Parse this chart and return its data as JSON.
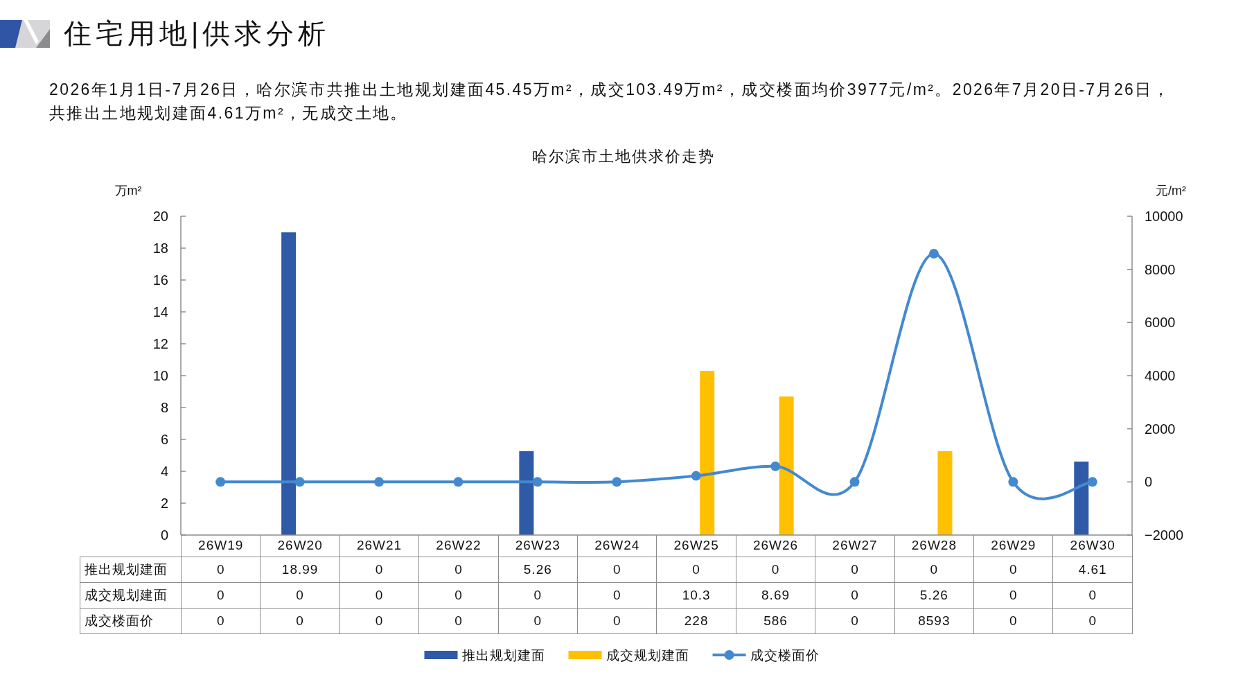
{
  "chart_data": {
    "type": "bar",
    "title": "住宅用地|供求分析",
    "subtitle": "2026年1月1日-7月26日，哈尔滨市共推出土地规划建面45.45万m²，成交103.49万m²，成交楼面均价3977元/m²。2026年7月20日-7月26日，共推出土地规划建面4.61万m²，无成交土地。",
    "annotations": [
      "哈尔滨市土地供求价走势"
    ],
    "ylabel": "万m²",
    "y2label": "元/m²",
    "categories": [
      "26W19",
      "26W20",
      "26W21",
      "26W22",
      "26W23",
      "26W24",
      "26W25",
      "26W26",
      "26W27",
      "26W28",
      "26W29",
      "26W30"
    ],
    "series": [
      {
        "name": "推出规划建面",
        "color": "#2e5aa8",
        "values": [
          0,
          18.99,
          0,
          0,
          5.26,
          0,
          0,
          0,
          0,
          0,
          0,
          4.61
        ]
      },
      {
        "name": "成交规划建面",
        "color": "#ffc000",
        "values": [
          0,
          0,
          0,
          0,
          0,
          0,
          10.3,
          8.69,
          0,
          5.26,
          0,
          0
        ]
      },
      {
        "name": "成交楼面价",
        "type": "line",
        "axis": "y2",
        "color": "#4389d0",
        "values": [
          0,
          0,
          0,
          0,
          0,
          0,
          228,
          586,
          0,
          8593,
          0,
          0
        ]
      }
    ],
    "ylim": [
      0,
      20
    ],
    "yticks": [
      0,
      2,
      4,
      6,
      8,
      10,
      12,
      14,
      16,
      18,
      20
    ],
    "y2lim": [
      -2000,
      10000
    ],
    "y2ticks": [
      -2000,
      0,
      2000,
      4000,
      6000,
      8000,
      10000
    ],
    "marker": "circle",
    "legend": "bottom",
    "data_labels": true
  }
}
